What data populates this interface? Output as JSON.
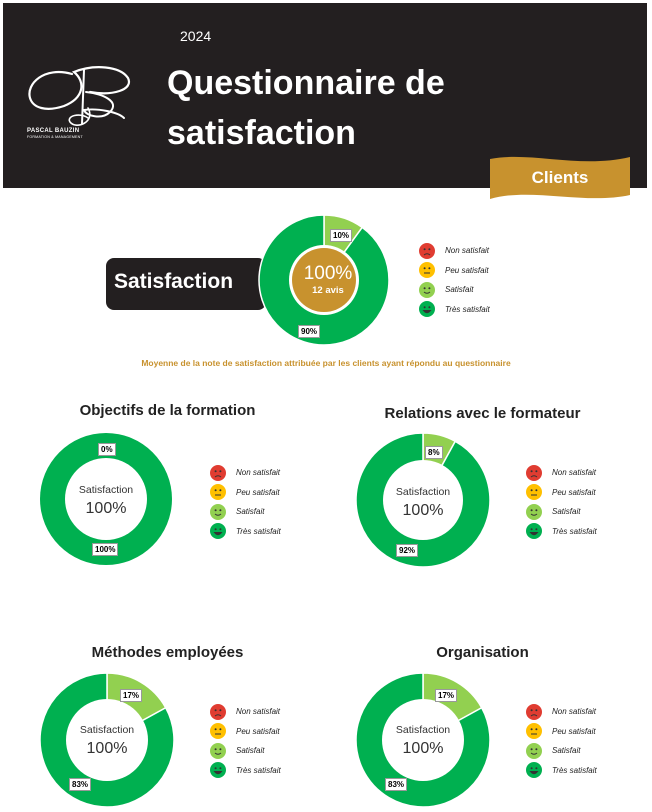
{
  "header": {
    "year": "2024",
    "title": "Questionnaire de satisfaction",
    "logo_name": "PASCAL BAUZIN",
    "logo_subtitle": "FORMATION & MANAGEMENT",
    "tag": "Clients"
  },
  "colors": {
    "dark": "#231f20",
    "gold": "#c8922e",
    "very_satisfied": "#00b050",
    "satisfied": "#92d050",
    "somewhat": "#ffc000",
    "not_satisfied": "#e03c31"
  },
  "legend": {
    "items": [
      "Non satisfait",
      "Peu satisfait",
      "Satisfait",
      "Très satisfait"
    ]
  },
  "main": {
    "label": "Satisfaction",
    "center_value": "100%",
    "count": "12 avis",
    "caption": "Moyenne de la note de satisfaction attribuée par les clients ayant répondu au questionnaire"
  },
  "sections": {
    "center_label": "Satisfaction",
    "objectifs": {
      "title": "Objectifs de la formation",
      "center_value": "100%"
    },
    "relations": {
      "title": "Relations avec le formateur",
      "center_value": "100%"
    },
    "methodes": {
      "title": "Méthodes employées",
      "center_value": "100%"
    },
    "organisation": {
      "title": "Organisation",
      "center_value": "100%"
    }
  },
  "chart_data": [
    {
      "type": "pie",
      "id": "main",
      "title": "Satisfaction",
      "categories": [
        "Satisfait",
        "Très satisfait"
      ],
      "values": [
        10,
        90
      ],
      "labels": [
        "10%",
        "90%"
      ]
    },
    {
      "type": "pie",
      "id": "objectifs",
      "title": "Objectifs de la formation",
      "categories": [
        "Satisfait",
        "Très satisfait"
      ],
      "values": [
        0,
        100
      ],
      "labels": [
        "0%",
        "100%"
      ]
    },
    {
      "type": "pie",
      "id": "relations",
      "title": "Relations avec le formateur",
      "categories": [
        "Satisfait",
        "Très satisfait"
      ],
      "values": [
        8,
        92
      ],
      "labels": [
        "8%",
        "92%"
      ]
    },
    {
      "type": "pie",
      "id": "methodes",
      "title": "Méthodes employées",
      "categories": [
        "Satisfait",
        "Très satisfait"
      ],
      "values": [
        17,
        83
      ],
      "labels": [
        "17%",
        "83%"
      ]
    },
    {
      "type": "pie",
      "id": "organisation",
      "title": "Organisation",
      "categories": [
        "Satisfait",
        "Très satisfait"
      ],
      "values": [
        17,
        83
      ],
      "labels": [
        "17%",
        "83%"
      ]
    }
  ]
}
